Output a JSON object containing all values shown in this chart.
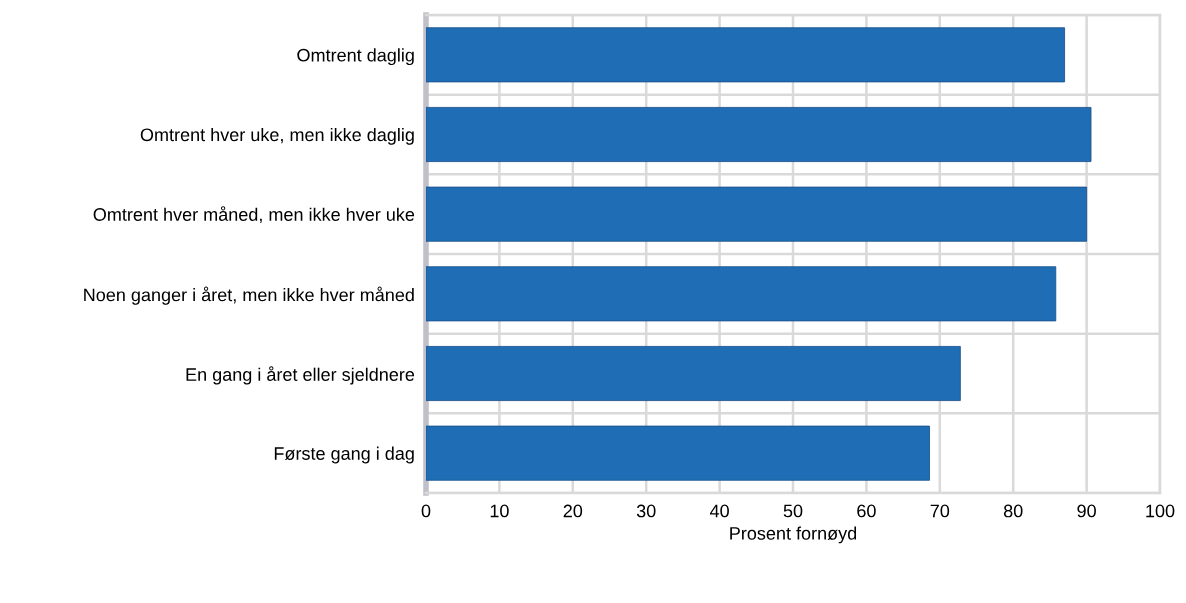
{
  "chart_data": {
    "type": "bar",
    "orientation": "horizontal",
    "xlabel": "Prosent fornøyd",
    "categories": [
      "Omtrent daglig",
      "Omtrent hver uke, men ikke daglig",
      "Omtrent hver måned, men ikke hver uke",
      "Noen ganger i året, men ikke hver måned",
      "En gang i året eller sjeldnere",
      "Første gang i dag"
    ],
    "values": [
      87.0,
      90.6,
      90.0,
      85.8,
      72.8,
      68.6
    ],
    "color": "#1f6eb5",
    "xlim": [
      0,
      100
    ],
    "xticks": [
      0,
      10,
      20,
      30,
      40,
      50,
      60,
      70,
      80,
      90,
      100
    ],
    "grid": true
  }
}
